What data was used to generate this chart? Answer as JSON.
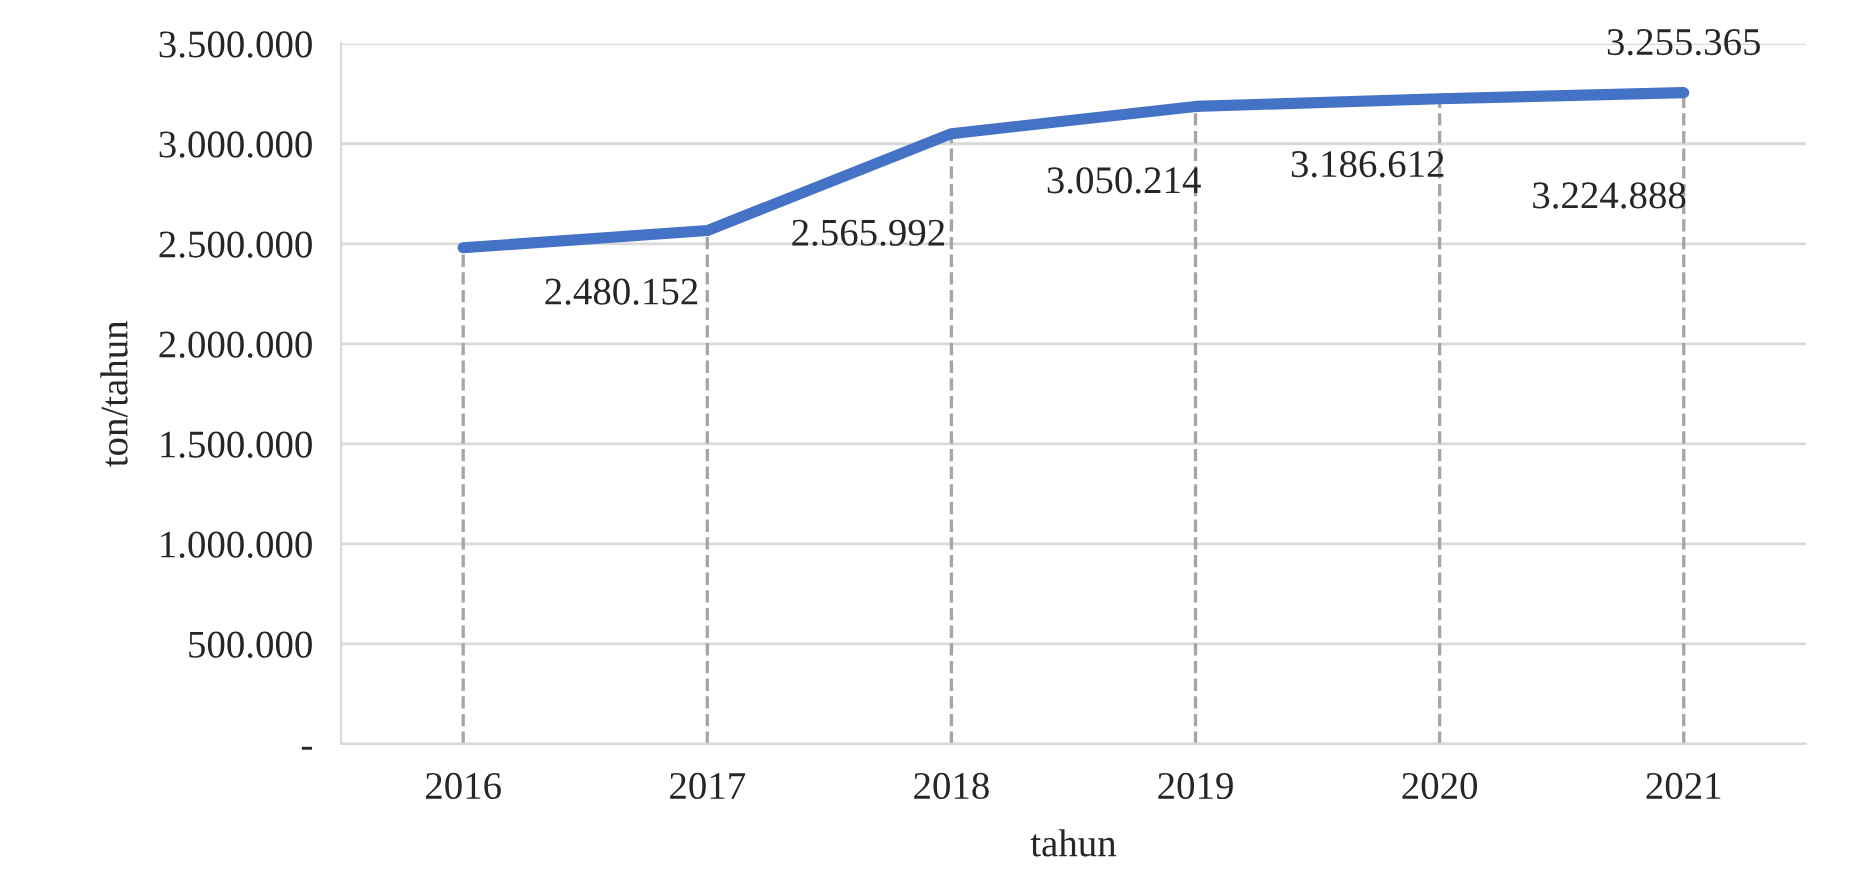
{
  "chart_data": {
    "type": "line",
    "xlabel": "tahun",
    "ylabel": "ton/tahun",
    "categories": [
      "2016",
      "2017",
      "2018",
      "2019",
      "2020",
      "2021"
    ],
    "series": [
      {
        "color": "#4472c4",
        "values": [
          2480152,
          2565992,
          3050214,
          3186612,
          3224888,
          3255365
        ]
      }
    ],
    "value_labels": [
      "2.480.152",
      "2.565.992",
      "3.050.214",
      "3.186.612",
      "3.224.888",
      "3.255.365"
    ],
    "ylim": [
      0,
      3500000
    ],
    "yticks": [
      {
        "value": 0,
        "label": "-"
      },
      {
        "value": 500000,
        "label": "500.000"
      },
      {
        "value": 1000000,
        "label": "1.000.000"
      },
      {
        "value": 1500000,
        "label": "1.500.000"
      },
      {
        "value": 2000000,
        "label": "2.000.000"
      },
      {
        "value": 2500000,
        "label": "2.500.000"
      },
      {
        "value": 3000000,
        "label": "3.000.000"
      },
      {
        "value": 3500000,
        "label": "3.500.000"
      }
    ],
    "grid": "y",
    "marker": "none",
    "line_style": "solid",
    "legend": false,
    "ref_lines": [
      {
        "axis": "x",
        "value": "2016",
        "color": "#a6a6a6",
        "line_style": "dashed"
      },
      {
        "axis": "x",
        "value": "2017",
        "color": "#a6a6a6",
        "line_style": "dashed"
      },
      {
        "axis": "x",
        "value": "2018",
        "color": "#a6a6a6",
        "line_style": "dashed"
      },
      {
        "axis": "x",
        "value": "2019",
        "color": "#a6a6a6",
        "line_style": "dashed"
      },
      {
        "axis": "x",
        "value": "2020",
        "color": "#a6a6a6",
        "line_style": "dashed"
      },
      {
        "axis": "x",
        "value": "2021",
        "color": "#a6a6a6",
        "line_style": "dashed"
      }
    ]
  }
}
